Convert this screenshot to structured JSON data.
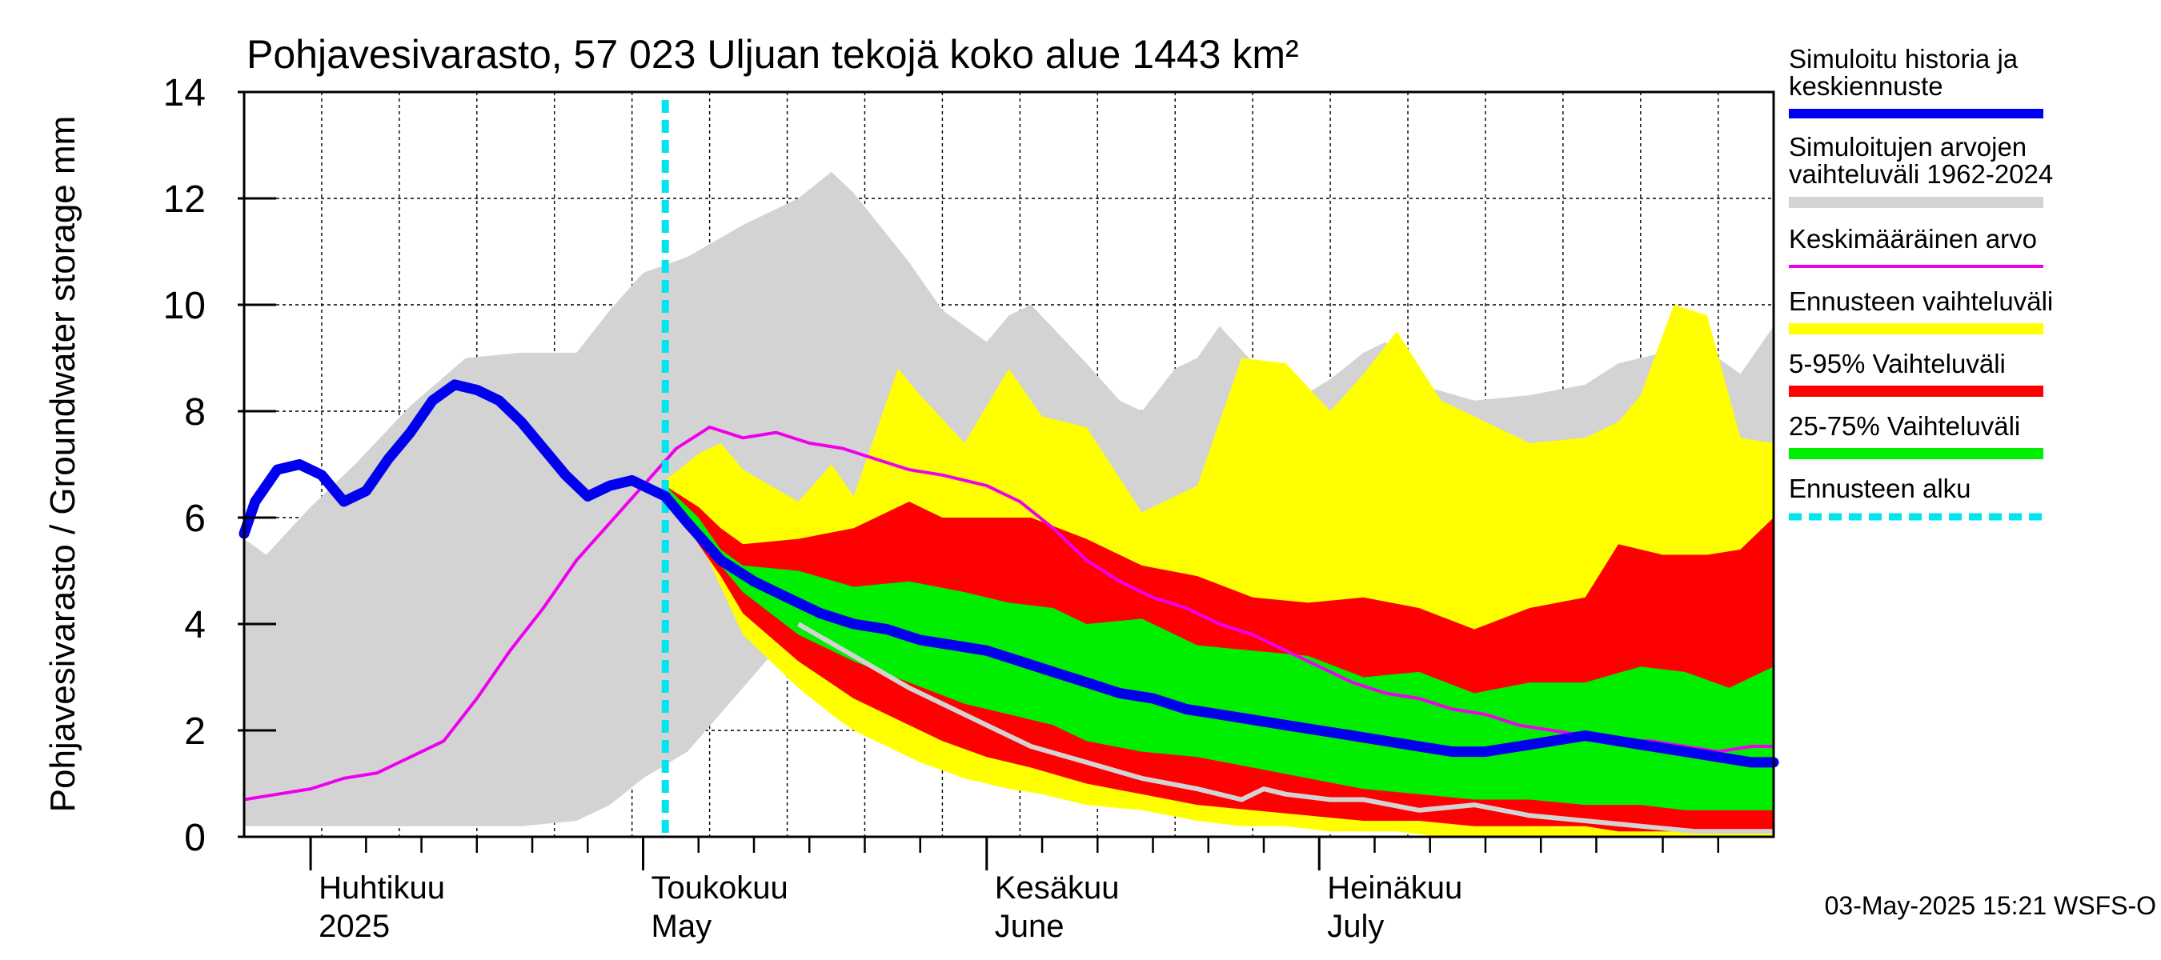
{
  "chart_data": {
    "type": "area",
    "title": "Pohjavesivarasto, 57 023 Uljuan tekojä koko alue 1443 km²",
    "ylabel": "Pohjavesivarasto / Groundwater storage   mm",
    "ylim": [
      0,
      14
    ],
    "yticks": [
      0,
      2,
      4,
      6,
      8,
      10,
      12,
      14
    ],
    "xlim": [
      "2025-03-26",
      "2025-08-11"
    ],
    "grid": true,
    "legend_placement": "right",
    "forecast_start": "2025-05-03",
    "timestamp": "03-May-2025 15:21 WSFS-O",
    "month_labels": [
      {
        "date": "2025-04-01",
        "fi": "Huhtikuu",
        "en": "2025"
      },
      {
        "date": "2025-05-01",
        "fi": "Toukokuu",
        "en": "May"
      },
      {
        "date": "2025-06-01",
        "fi": "Kesäkuu",
        "en": "June"
      },
      {
        "date": "2025-07-01",
        "fi": "Heinäkuu",
        "en": "July"
      }
    ],
    "legend": [
      {
        "id": "history",
        "label": "Simuloitu historia ja keskiennuste",
        "color": "#0000ee"
      },
      {
        "id": "hist_range",
        "label": "Simuloitujen arvojen vaihteluväli 1962-2024",
        "color": "#d3d3d3"
      },
      {
        "id": "mean",
        "label": "Keskimääräinen arvo",
        "color": "#ee00ee"
      },
      {
        "id": "fc_range",
        "label": "Ennusteen vaihteluväli",
        "color": "#ffff00"
      },
      {
        "id": "p5_95",
        "label": "5-95% Vaihteluväli",
        "color": "#ff0000"
      },
      {
        "id": "p25_75",
        "label": "25-75% Vaihteluväli",
        "color": "#00ee00"
      },
      {
        "id": "fc_start",
        "label": "Ennusteen alku",
        "color": "#00e5ee"
      }
    ],
    "series": {
      "hist_range": {
        "x": [
          "2025-03-26",
          "2025-03-28",
          "2025-04-01",
          "2025-04-05",
          "2025-04-10",
          "2025-04-15",
          "2025-04-20",
          "2025-04-25",
          "2025-04-28",
          "2025-05-01",
          "2025-05-05",
          "2025-05-10",
          "2025-05-15",
          "2025-05-18",
          "2025-05-20",
          "2025-05-25",
          "2025-05-28",
          "2025-06-01",
          "2025-06-03",
          "2025-06-05",
          "2025-06-10",
          "2025-06-13",
          "2025-06-15",
          "2025-06-18",
          "2025-06-20",
          "2025-06-22",
          "2025-06-26",
          "2025-06-28",
          "2025-07-02",
          "2025-07-05",
          "2025-07-07",
          "2025-07-10",
          "2025-07-15",
          "2025-07-20",
          "2025-07-25",
          "2025-07-28",
          "2025-07-30",
          "2025-08-03",
          "2025-08-06",
          "2025-08-08",
          "2025-08-11"
        ],
        "upper": [
          5.6,
          5.3,
          6.2,
          7.0,
          8.1,
          9.0,
          9.1,
          9.1,
          9.9,
          10.6,
          10.9,
          11.5,
          12.0,
          12.5,
          12.1,
          10.8,
          9.9,
          9.3,
          9.8,
          10.0,
          8.9,
          8.2,
          8.0,
          8.8,
          9.0,
          9.6,
          8.7,
          8.1,
          8.6,
          9.1,
          9.3,
          8.5,
          8.2,
          8.3,
          8.5,
          8.9,
          9.0,
          9.2,
          9.0,
          8.7,
          9.6
        ],
        "lower": [
          0.2,
          0.2,
          0.2,
          0.2,
          0.2,
          0.2,
          0.2,
          0.3,
          0.6,
          1.1,
          1.6,
          2.8,
          4.0,
          4.0,
          3.8,
          2.9,
          2.4,
          1.9,
          1.6,
          1.4,
          1.1,
          0.9,
          0.8,
          0.7,
          0.6,
          0.5,
          0.4,
          0.4,
          0.3,
          0.3,
          0.3,
          0.2,
          0.2,
          0.2,
          0.2,
          0.1,
          0.1,
          0.1,
          0.1,
          0.1,
          0.1
        ]
      },
      "fc_range": {
        "x": [
          "2025-05-03",
          "2025-05-06",
          "2025-05-08",
          "2025-05-10",
          "2025-05-15",
          "2025-05-18",
          "2025-05-20",
          "2025-05-24",
          "2025-05-26",
          "2025-05-30",
          "2025-06-03",
          "2025-06-06",
          "2025-06-10",
          "2025-06-15",
          "2025-06-20",
          "2025-06-24",
          "2025-06-28",
          "2025-07-02",
          "2025-07-05",
          "2025-07-08",
          "2025-07-12",
          "2025-07-16",
          "2025-07-20",
          "2025-07-25",
          "2025-07-28",
          "2025-07-30",
          "2025-08-02",
          "2025-08-05",
          "2025-08-08",
          "2025-08-11"
        ],
        "upper": [
          6.7,
          7.2,
          7.4,
          6.9,
          6.3,
          7.0,
          6.4,
          8.8,
          8.3,
          7.4,
          8.8,
          7.9,
          7.7,
          6.1,
          6.6,
          9.0,
          8.9,
          8.0,
          8.7,
          9.5,
          8.2,
          7.8,
          7.4,
          7.5,
          7.8,
          8.3,
          10.0,
          9.8,
          7.5,
          7.4
        ],
        "lower": [
          6.5,
          5.6,
          4.7,
          3.8,
          2.8,
          2.3,
          2.0,
          1.6,
          1.4,
          1.1,
          0.9,
          0.8,
          0.6,
          0.5,
          0.3,
          0.2,
          0.2,
          0.1,
          0.1,
          0.1,
          0.0,
          0.0,
          0.0,
          0.0,
          0.0,
          0.0,
          0.0,
          0.0,
          0.0,
          0.0
        ]
      },
      "p5_95": {
        "x": [
          "2025-05-03",
          "2025-05-06",
          "2025-05-08",
          "2025-05-10",
          "2025-05-15",
          "2025-05-20",
          "2025-05-25",
          "2025-05-28",
          "2025-06-01",
          "2025-06-05",
          "2025-06-10",
          "2025-06-15",
          "2025-06-20",
          "2025-06-25",
          "2025-06-30",
          "2025-07-05",
          "2025-07-10",
          "2025-07-15",
          "2025-07-20",
          "2025-07-25",
          "2025-07-28",
          "2025-08-01",
          "2025-08-05",
          "2025-08-08",
          "2025-08-11"
        ],
        "upper": [
          6.6,
          6.2,
          5.8,
          5.5,
          5.6,
          5.8,
          6.3,
          6.0,
          6.0,
          6.0,
          5.6,
          5.1,
          4.9,
          4.5,
          4.4,
          4.5,
          4.3,
          3.9,
          4.3,
          4.5,
          5.5,
          5.3,
          5.3,
          5.4,
          6.0
        ],
        "lower": [
          6.5,
          5.5,
          4.9,
          4.2,
          3.3,
          2.6,
          2.1,
          1.8,
          1.5,
          1.3,
          1.0,
          0.8,
          0.6,
          0.5,
          0.4,
          0.3,
          0.3,
          0.2,
          0.2,
          0.2,
          0.1,
          0.1,
          0.1,
          0.1,
          0.1
        ]
      },
      "p25_75": {
        "x": [
          "2025-05-03",
          "2025-05-06",
          "2025-05-08",
          "2025-05-10",
          "2025-05-15",
          "2025-05-20",
          "2025-05-25",
          "2025-05-30",
          "2025-06-03",
          "2025-06-07",
          "2025-06-10",
          "2025-06-15",
          "2025-06-20",
          "2025-06-25",
          "2025-06-30",
          "2025-07-05",
          "2025-07-10",
          "2025-07-15",
          "2025-07-20",
          "2025-07-25",
          "2025-07-30",
          "2025-08-03",
          "2025-08-07",
          "2025-08-11"
        ],
        "upper": [
          6.6,
          6.0,
          5.4,
          5.1,
          5.0,
          4.7,
          4.8,
          4.6,
          4.4,
          4.3,
          4.0,
          4.1,
          3.6,
          3.5,
          3.4,
          3.0,
          3.1,
          2.7,
          2.9,
          2.9,
          3.2,
          3.1,
          2.8,
          3.2
        ],
        "lower": [
          6.5,
          5.7,
          5.1,
          4.6,
          3.8,
          3.3,
          2.9,
          2.5,
          2.3,
          2.1,
          1.8,
          1.6,
          1.5,
          1.3,
          1.1,
          0.9,
          0.8,
          0.7,
          0.7,
          0.6,
          0.6,
          0.5,
          0.5,
          0.5
        ]
      },
      "history": {
        "x": [
          "2025-03-26",
          "2025-03-27",
          "2025-03-29",
          "2025-03-31",
          "2025-04-02",
          "2025-04-04",
          "2025-04-06",
          "2025-04-08",
          "2025-04-10",
          "2025-04-12",
          "2025-04-14",
          "2025-04-16",
          "2025-04-18",
          "2025-04-20",
          "2025-04-22",
          "2025-04-24",
          "2025-04-26",
          "2025-04-28",
          "2025-04-30",
          "2025-05-02",
          "2025-05-03",
          "2025-05-05",
          "2025-05-08",
          "2025-05-11",
          "2025-05-14",
          "2025-05-17",
          "2025-05-20",
          "2025-05-23",
          "2025-05-26",
          "2025-05-29",
          "2025-06-01",
          "2025-06-04",
          "2025-06-07",
          "2025-06-10",
          "2025-06-13",
          "2025-06-16",
          "2025-06-19",
          "2025-06-22",
          "2025-06-25",
          "2025-06-28",
          "2025-07-01",
          "2025-07-04",
          "2025-07-07",
          "2025-07-10",
          "2025-07-13",
          "2025-07-16",
          "2025-07-19",
          "2025-07-22",
          "2025-07-25",
          "2025-07-28",
          "2025-07-31",
          "2025-08-03",
          "2025-08-06",
          "2025-08-09",
          "2025-08-11"
        ],
        "values": [
          5.7,
          6.3,
          6.9,
          7.0,
          6.8,
          6.3,
          6.5,
          7.1,
          7.6,
          8.2,
          8.5,
          8.4,
          8.2,
          7.8,
          7.3,
          6.8,
          6.4,
          6.6,
          6.7,
          6.5,
          6.4,
          5.9,
          5.2,
          4.8,
          4.5,
          4.2,
          4.0,
          3.9,
          3.7,
          3.6,
          3.5,
          3.3,
          3.1,
          2.9,
          2.7,
          2.6,
          2.4,
          2.3,
          2.2,
          2.1,
          2.0,
          1.9,
          1.8,
          1.7,
          1.6,
          1.6,
          1.7,
          1.8,
          1.9,
          1.8,
          1.7,
          1.6,
          1.5,
          1.4,
          1.4
        ]
      },
      "mean": {
        "x": [
          "2025-03-26",
          "2025-03-29",
          "2025-04-01",
          "2025-04-04",
          "2025-04-07",
          "2025-04-10",
          "2025-04-13",
          "2025-04-16",
          "2025-04-19",
          "2025-04-22",
          "2025-04-25",
          "2025-04-28",
          "2025-05-01",
          "2025-05-04",
          "2025-05-07",
          "2025-05-10",
          "2025-05-13",
          "2025-05-16",
          "2025-05-19",
          "2025-05-22",
          "2025-05-25",
          "2025-05-28",
          "2025-06-01",
          "2025-06-04",
          "2025-06-07",
          "2025-06-10",
          "2025-06-13",
          "2025-06-16",
          "2025-06-19",
          "2025-06-22",
          "2025-06-25",
          "2025-06-28",
          "2025-07-01",
          "2025-07-04",
          "2025-07-07",
          "2025-07-10",
          "2025-07-13",
          "2025-07-16",
          "2025-07-19",
          "2025-07-22",
          "2025-07-25",
          "2025-07-28",
          "2025-07-31",
          "2025-08-03",
          "2025-08-06",
          "2025-08-09",
          "2025-08-11"
        ],
        "values": [
          0.7,
          0.8,
          0.9,
          1.1,
          1.2,
          1.5,
          1.8,
          2.6,
          3.5,
          4.3,
          5.2,
          5.9,
          6.6,
          7.3,
          7.7,
          7.5,
          7.6,
          7.4,
          7.3,
          7.1,
          6.9,
          6.8,
          6.6,
          6.3,
          5.8,
          5.2,
          4.8,
          4.5,
          4.3,
          4.0,
          3.8,
          3.5,
          3.2,
          2.9,
          2.7,
          2.6,
          2.4,
          2.3,
          2.1,
          2.0,
          1.9,
          1.8,
          1.8,
          1.7,
          1.6,
          1.7,
          1.7
        ]
      },
      "scenario_min": {
        "x": [
          "2025-05-15",
          "2025-05-20",
          "2025-05-25",
          "2025-06-01",
          "2025-06-05",
          "2025-06-10",
          "2025-06-15",
          "2025-06-20",
          "2025-06-24",
          "2025-06-26",
          "2025-06-28",
          "2025-07-02",
          "2025-07-05",
          "2025-07-10",
          "2025-07-15",
          "2025-07-20",
          "2025-07-25",
          "2025-07-30",
          "2025-08-04",
          "2025-08-11"
        ],
        "values": [
          4.0,
          3.4,
          2.8,
          2.1,
          1.7,
          1.4,
          1.1,
          0.9,
          0.7,
          0.9,
          0.8,
          0.7,
          0.7,
          0.5,
          0.6,
          0.4,
          0.3,
          0.2,
          0.1,
          0.1
        ]
      }
    }
  }
}
